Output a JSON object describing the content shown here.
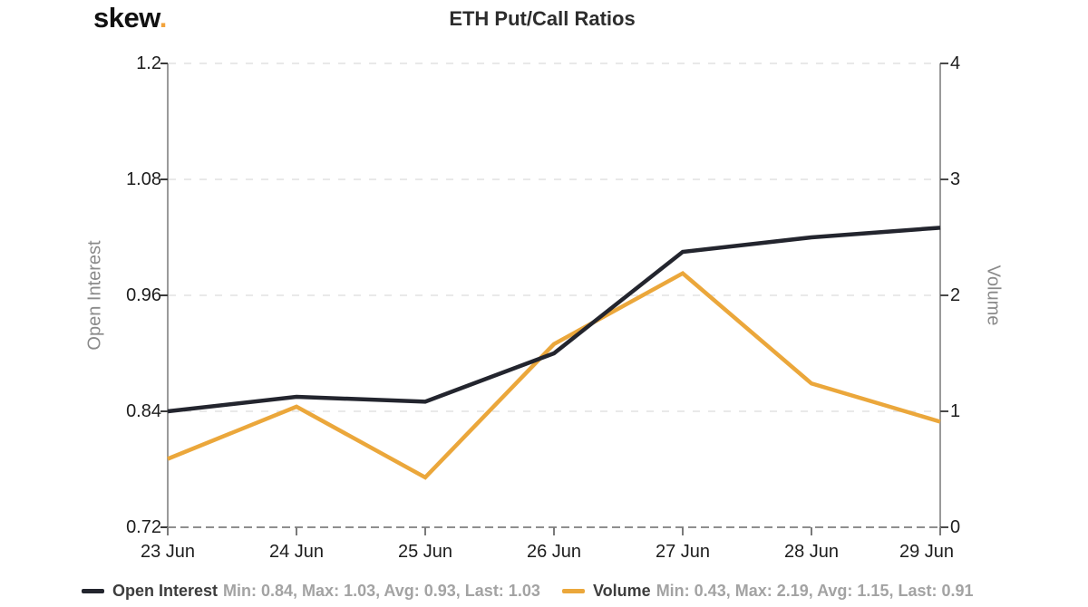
{
  "header": {
    "logo_text": "skew",
    "logo_dot": ".",
    "title": "ETH Put/Call Ratios"
  },
  "colors": {
    "open_interest_line": "#23252e",
    "volume_line": "#eba73b",
    "logo_dot": "#f2a33c",
    "axis_line": "#9a9a9a",
    "gridline": "#e9e9e9",
    "bottom_dashed_line": "#8f8f8f",
    "tick_label": "#1d1d1d",
    "axis_title": "#8a8a8a",
    "legend_name": "#3d3d3d",
    "legend_stats": "#a3a3a3"
  },
  "chart_data": {
    "type": "line",
    "title": "ETH Put/Call Ratios",
    "x_categories": [
      "23 Jun",
      "24 Jun",
      "25 Jun",
      "26 Jun",
      "27 Jun",
      "28 Jun",
      "29 Jun"
    ],
    "left_axis": {
      "label": "Open Interest",
      "tick_labels": [
        "1.2",
        "1.08",
        "0.96",
        "0.84",
        "0.72"
      ],
      "range": [
        0.72,
        1.2
      ]
    },
    "right_axis": {
      "label": "Volume",
      "tick_labels": [
        "4",
        "3",
        "2",
        "1",
        "0"
      ],
      "range": [
        0,
        4
      ]
    },
    "grid": "horizontal-dashed",
    "legend_position": "bottom",
    "series": [
      {
        "name": "Open Interest",
        "axis": "left",
        "color": "#23252e",
        "values": [
          0.84,
          0.855,
          0.85,
          0.9,
          1.005,
          1.02,
          1.03
        ],
        "stats": {
          "min": "0.84",
          "max": "1.03",
          "avg": "0.93",
          "last": "1.03"
        }
      },
      {
        "name": "Volume",
        "axis": "right",
        "color": "#eba73b",
        "values": [
          0.59,
          1.04,
          0.43,
          1.58,
          2.19,
          1.24,
          0.91
        ],
        "stats": {
          "min": "0.43",
          "max": "2.19",
          "avg": "1.15",
          "last": "0.91"
        }
      }
    ]
  },
  "legend": {
    "items": [
      {
        "name": "Open Interest",
        "stats": "Min: 0.84, Max: 1.03, Avg: 0.93, Last: 1.03",
        "color": "#23252e"
      },
      {
        "name": "Volume",
        "stats": "Min: 0.43, Max: 2.19, Avg: 1.15, Last: 0.91",
        "color": "#eba73b"
      }
    ]
  }
}
